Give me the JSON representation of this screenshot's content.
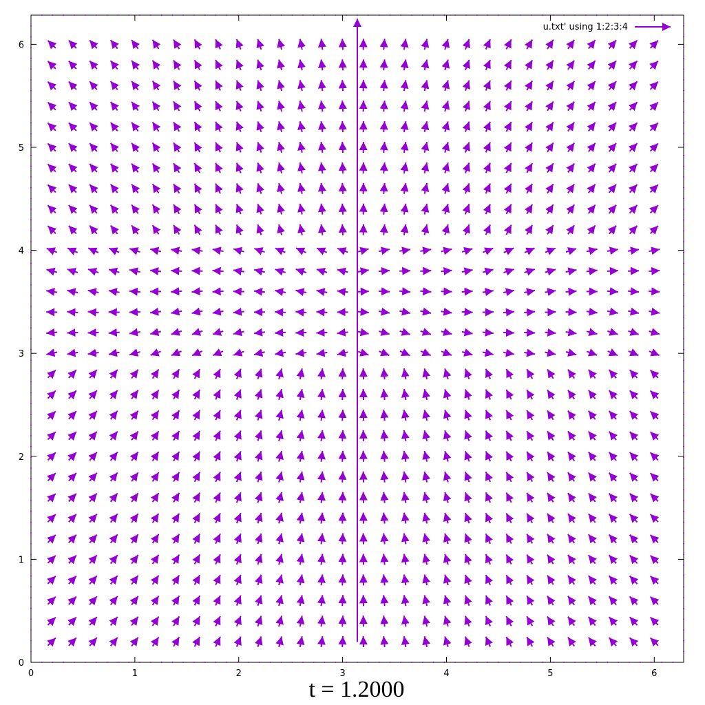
{
  "chart_data": {
    "type": "vector-field",
    "title": "",
    "xlabel": "",
    "ylabel": "",
    "xlim": [
      0,
      6.2832
    ],
    "ylim": [
      0,
      6.2832
    ],
    "x_ticks": [
      "0",
      "1",
      "2",
      "3",
      "4",
      "5",
      "6"
    ],
    "y_ticks": [
      "0",
      "1",
      "2",
      "3",
      "4",
      "5",
      "6"
    ],
    "grid": false,
    "legend": {
      "label": "u.txt' using 1:2:3:4",
      "position": "top-right"
    },
    "series": [
      {
        "name": "u.txt' using 1:2:3:4",
        "color": "#9400d3",
        "marker": "arrow"
      }
    ],
    "field": {
      "grid_x_start": 0.2,
      "grid_x_step": 0.2,
      "grid_x_count": 30,
      "grid_y_start": 0.2,
      "grid_y_step": 0.2,
      "grid_y_count": 30,
      "center": [
        3.1416,
        3.5
      ]
    },
    "caption": "t = 1.2000"
  }
}
